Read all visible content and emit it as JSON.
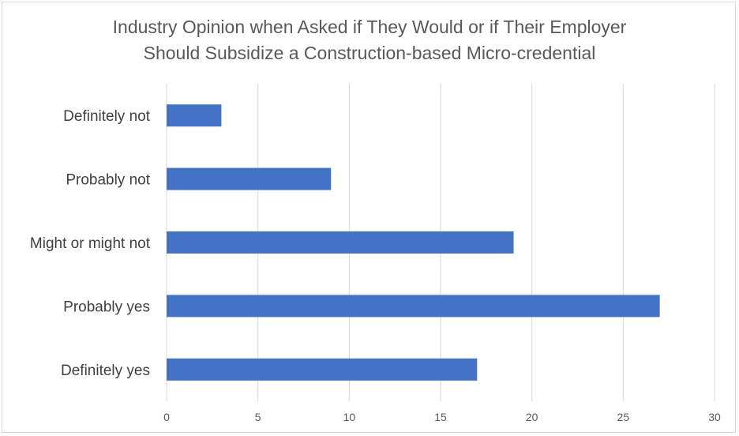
{
  "chart_data": {
    "type": "bar",
    "orientation": "horizontal",
    "title_lines": [
      "Industry Opinion when Asked if They Would or if Their Employer",
      "Should Subsidize a Construction-based Micro-credential"
    ],
    "categories": [
      "Definitely not",
      "Probably not",
      "Might or might not",
      "Probably yes",
      "Definitely yes"
    ],
    "values": [
      3,
      9,
      19,
      27,
      17
    ],
    "xlim": [
      0,
      30
    ],
    "xticks": [
      0,
      5,
      10,
      15,
      20,
      25,
      30
    ],
    "xlabel": "",
    "ylabel": "",
    "grid": "vertical",
    "legend": "none",
    "bar_color": "#4472c4",
    "grid_color": "#d9d9d9"
  }
}
